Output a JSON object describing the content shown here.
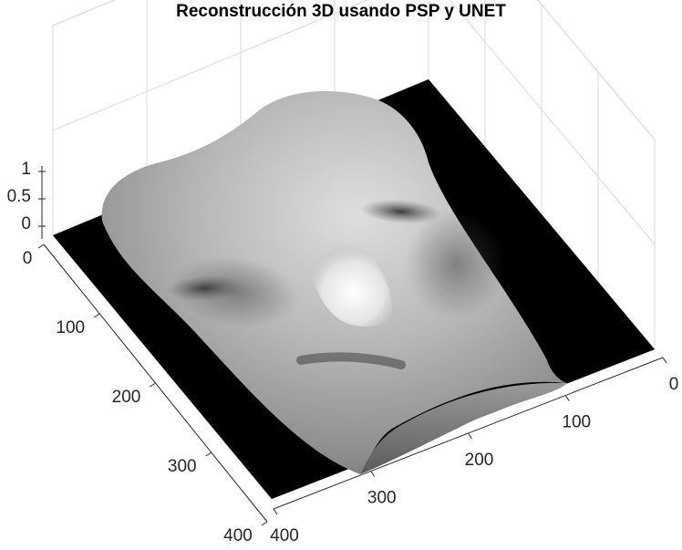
{
  "chart_data": {
    "type": "surface",
    "title": "Reconstrucción 3D usando PSP y UNET",
    "xlabel": "",
    "ylabel": "",
    "zlabel": "",
    "x_ticks": [
      "0",
      "100",
      "200",
      "300",
      "400"
    ],
    "y_ticks": [
      "0",
      "100",
      "200",
      "300",
      "400"
    ],
    "z_ticks": [
      "0",
      "0.5",
      "1"
    ],
    "xlim": [
      0,
      400
    ],
    "ylim": [
      0,
      400
    ],
    "zlim": [
      0,
      1
    ],
    "grid": true,
    "colormap": "gray",
    "surface": "face",
    "colors": {
      "background": "#ffffff",
      "grid": "#d9d9d9",
      "axis": "#262626",
      "floor": "#000000"
    }
  }
}
